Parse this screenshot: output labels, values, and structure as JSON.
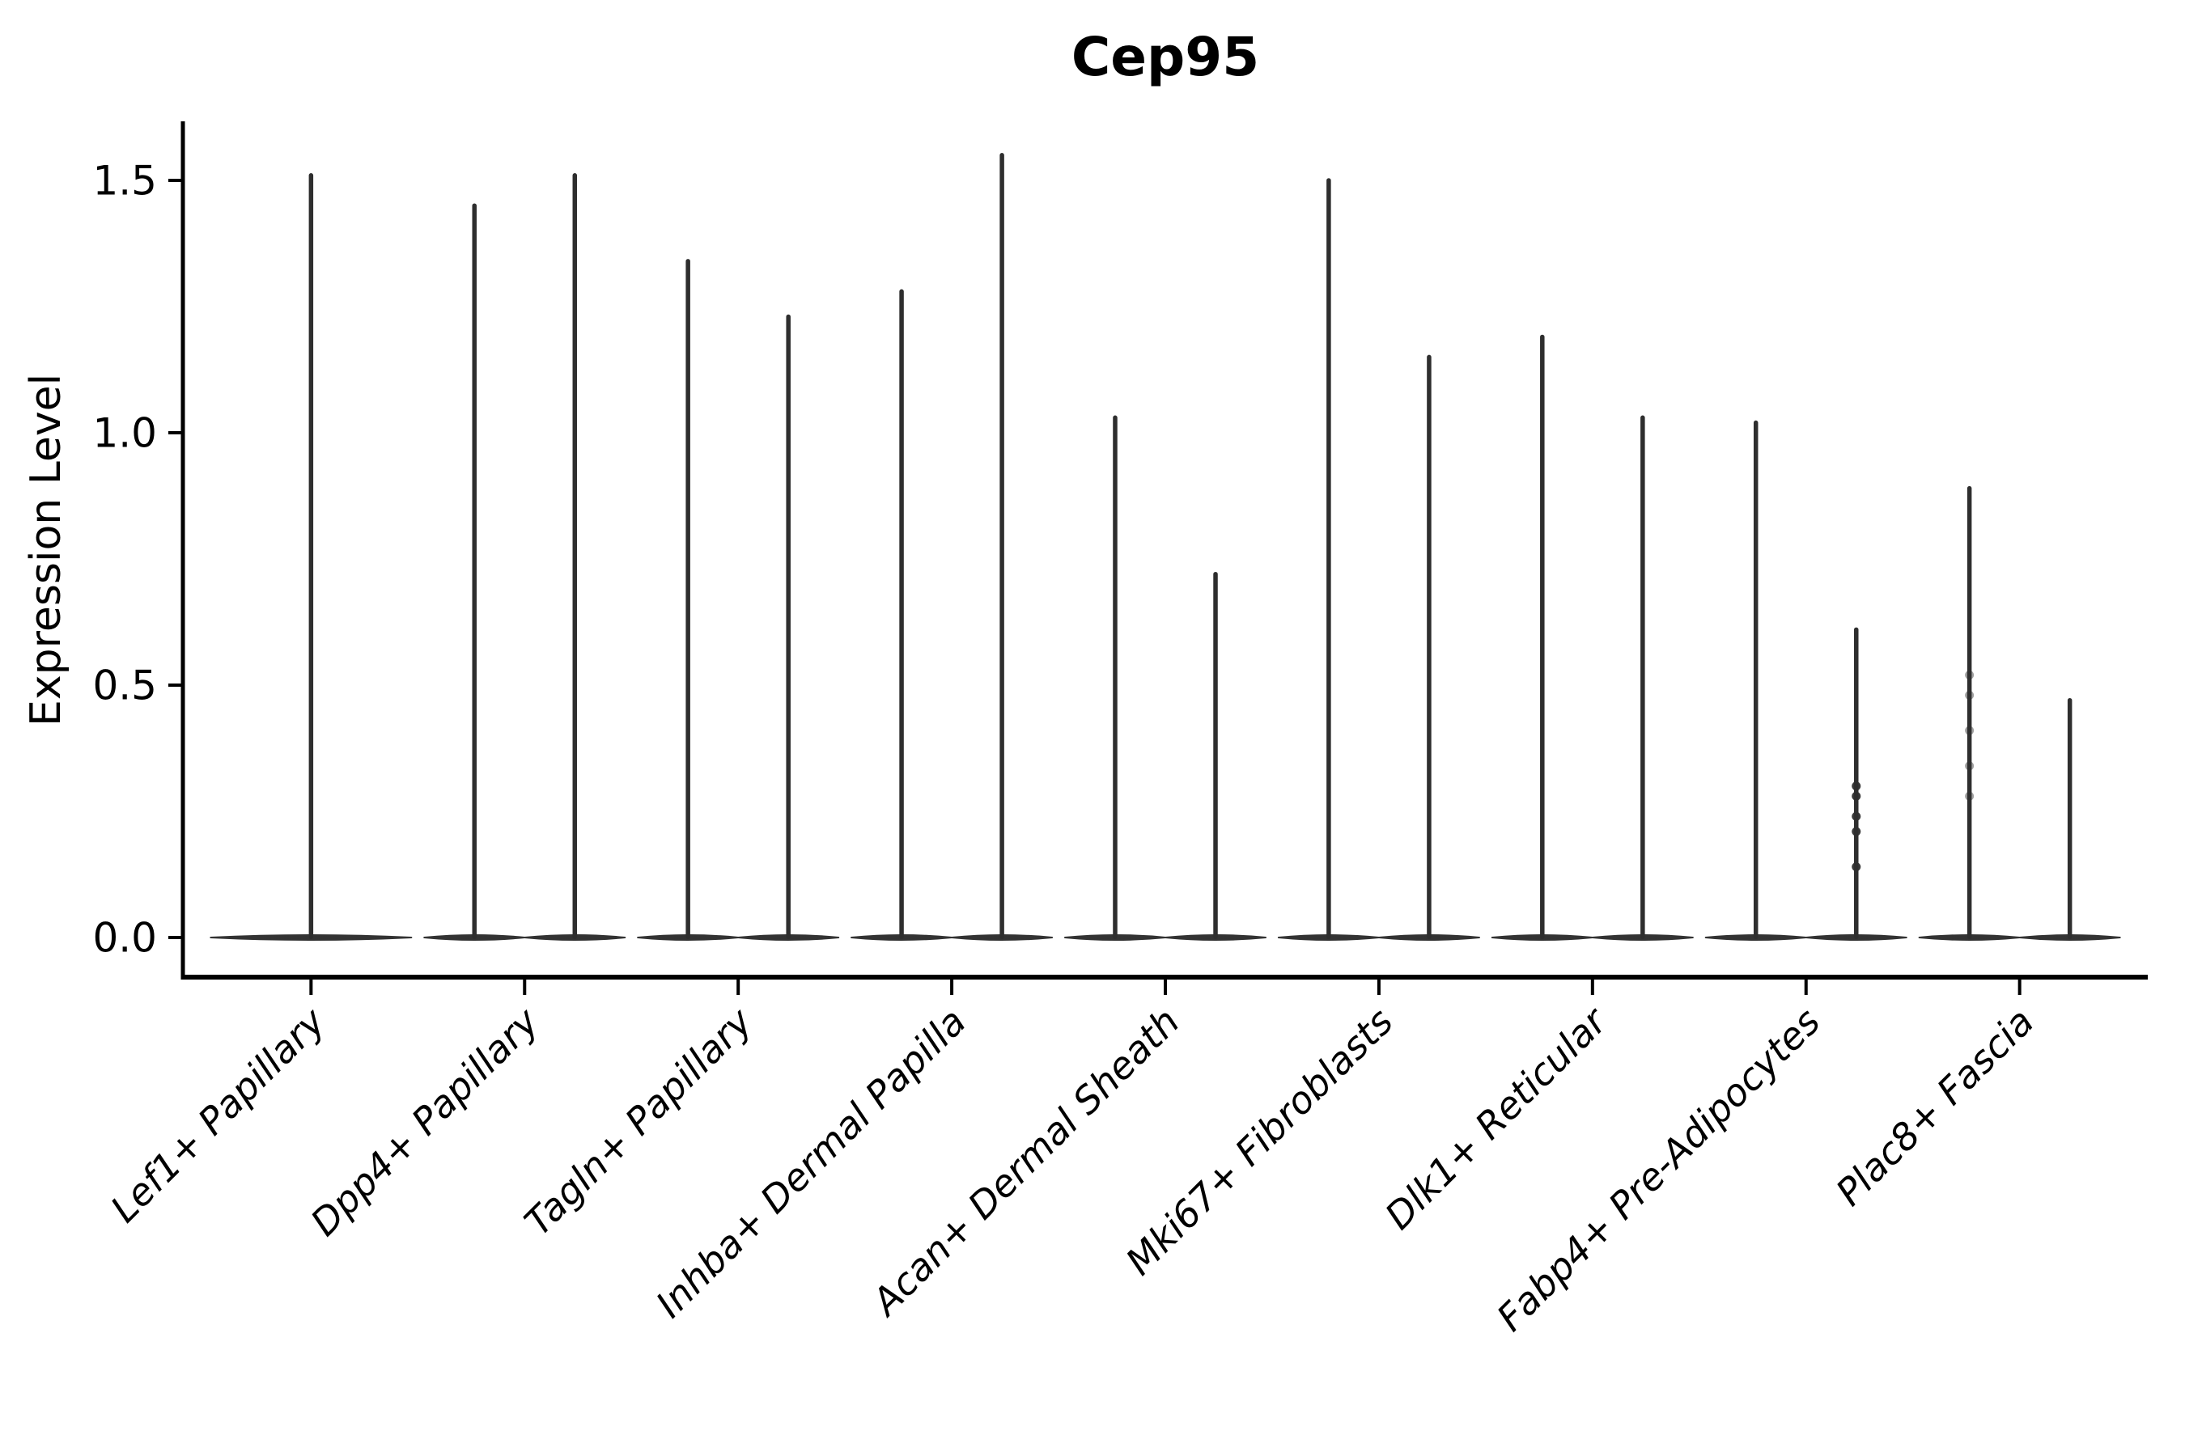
{
  "figure": {
    "background": "#ffffff"
  },
  "chart_data": {
    "type": "violin",
    "title": "Cep95",
    "ylabel": "Expression Level",
    "xlabel": "",
    "grid": false,
    "legend": "none",
    "ylim": [
      -0.08,
      1.62
    ],
    "yticks": [
      0.0,
      0.5,
      1.0,
      1.5
    ],
    "ytick_labels": [
      "0.0",
      "0.5",
      "1.0",
      "1.5"
    ],
    "colors": {
      "violin": "#333333",
      "spike": "#2e2e2e",
      "axis": "#000000",
      "text": "#000000"
    },
    "categories": [
      "Lef1+ Papillary",
      "Dpp4+ Papillary",
      "Tagln+ Papillary",
      "Inhba+ Dermal Papilla",
      "Acan+ Dermal Sheath",
      "Mki67+ Fibroblasts",
      "Dlk1+ Reticular",
      "Fabp4+ Pre-Adipocytes",
      "Plac8+ Fascia"
    ],
    "violins": [
      {
        "category_index": 0,
        "category": "Lef1+ Papillary",
        "position": "center",
        "baseline": 0.0,
        "max_expression": 1.51
      },
      {
        "category_index": 1,
        "category": "Dpp4+ Papillary",
        "position": "left",
        "baseline": 0.0,
        "max_expression": 1.45
      },
      {
        "category_index": 1,
        "category": "Dpp4+ Papillary",
        "position": "right",
        "baseline": 0.0,
        "max_expression": 1.51
      },
      {
        "category_index": 2,
        "category": "Tagln+ Papillary",
        "position": "left",
        "baseline": 0.0,
        "max_expression": 1.34
      },
      {
        "category_index": 2,
        "category": "Tagln+ Papillary",
        "position": "right",
        "baseline": 0.0,
        "max_expression": 1.23
      },
      {
        "category_index": 3,
        "category": "Inhba+ Dermal Papilla",
        "position": "left",
        "baseline": 0.0,
        "max_expression": 1.28
      },
      {
        "category_index": 3,
        "category": "Inhba+ Dermal Papilla",
        "position": "right",
        "baseline": 0.0,
        "max_expression": 1.55
      },
      {
        "category_index": 4,
        "category": "Acan+ Dermal Sheath",
        "position": "left",
        "baseline": 0.0,
        "max_expression": 1.03
      },
      {
        "category_index": 4,
        "category": "Acan+ Dermal Sheath",
        "position": "right",
        "baseline": 0.0,
        "max_expression": 0.72
      },
      {
        "category_index": 5,
        "category": "Mki67+ Fibroblasts",
        "position": "left",
        "baseline": 0.0,
        "max_expression": 1.5
      },
      {
        "category_index": 5,
        "category": "Mki67+ Fibroblasts",
        "position": "right",
        "baseline": 0.0,
        "max_expression": 1.15
      },
      {
        "category_index": 6,
        "category": "Dlk1+ Reticular",
        "position": "left",
        "baseline": 0.0,
        "max_expression": 1.19
      },
      {
        "category_index": 6,
        "category": "Dlk1+ Reticular",
        "position": "right",
        "baseline": 0.0,
        "max_expression": 1.03
      },
      {
        "category_index": 7,
        "category": "Fabp4+ Pre-Adipocytes",
        "position": "left",
        "baseline": 0.0,
        "max_expression": 1.02
      },
      {
        "category_index": 7,
        "category": "Fabp4+ Pre-Adipocytes",
        "position": "right",
        "baseline": 0.0,
        "max_expression": 0.61
      },
      {
        "category_index": 8,
        "category": "Plac8+ Fascia",
        "position": "left",
        "baseline": 0.0,
        "max_expression": 0.89
      },
      {
        "category_index": 8,
        "category": "Plac8+ Fascia",
        "position": "right",
        "baseline": 0.0,
        "max_expression": 0.47
      }
    ],
    "jitter_points": [
      {
        "category_index": 7,
        "category": "Fabp4+ Pre-Adipocytes",
        "position": "right",
        "values": [
          0.3,
          0.28,
          0.24,
          0.21,
          0.14
        ],
        "opacity": 0.95
      },
      {
        "category_index": 8,
        "category": "Plac8+ Fascia",
        "position": "left",
        "values": [
          0.52,
          0.48,
          0.41,
          0.34,
          0.28
        ],
        "opacity": 0.45
      }
    ]
  }
}
